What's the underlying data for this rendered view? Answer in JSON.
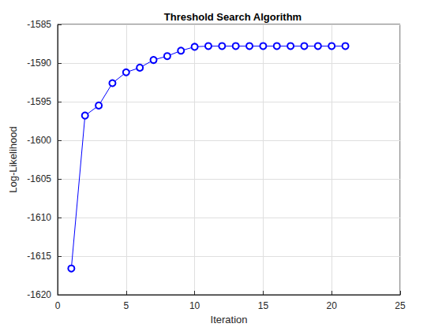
{
  "chart_data": {
    "type": "line",
    "title": "Threshold Search Algorithm",
    "x_label": "Iteration",
    "y_label": "Log-Likelihood",
    "x": [
      1,
      2,
      3,
      4,
      5,
      6,
      7,
      8,
      9,
      10,
      11,
      12,
      13,
      14,
      15,
      16,
      17,
      18,
      19,
      20,
      21
    ],
    "values": [
      -1616.6,
      -1596.8,
      -1595.5,
      -1592.6,
      -1591.2,
      -1590.6,
      -1589.6,
      -1589.1,
      -1588.4,
      -1587.9,
      -1587.8,
      -1587.8,
      -1587.8,
      -1587.8,
      -1587.8,
      -1587.8,
      -1587.8,
      -1587.8,
      -1587.8,
      -1587.8,
      -1587.8
    ],
    "color": "#0000ff",
    "marker": "circle",
    "line_style": "solid",
    "xlim": [
      0,
      25
    ],
    "xticks": [
      0,
      5,
      10,
      15,
      20,
      25
    ],
    "ylim": [
      -1620,
      -1585
    ],
    "yticks": [
      -1620,
      -1615,
      -1610,
      -1605,
      -1600,
      -1595,
      -1590,
      -1585
    ],
    "grid": true
  }
}
